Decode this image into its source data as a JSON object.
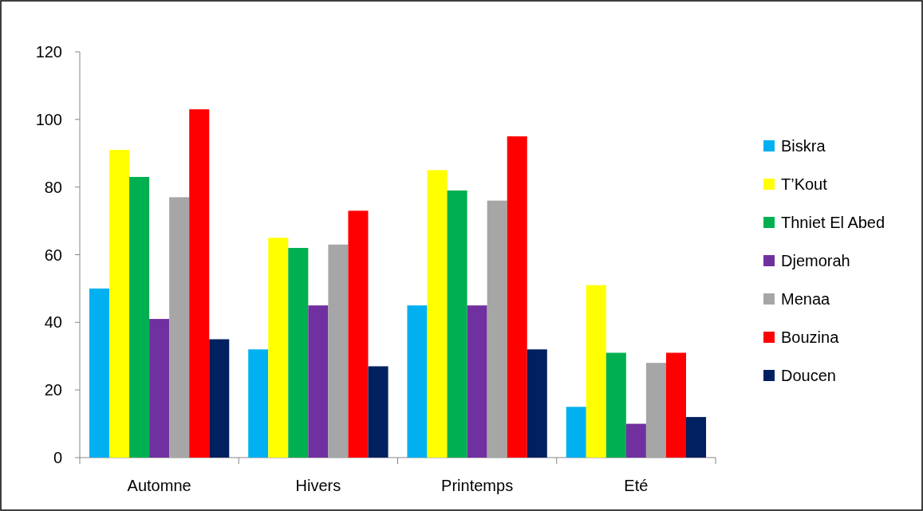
{
  "chart_data": {
    "type": "bar",
    "categories": [
      "Automne",
      "Hivers",
      "Printemps",
      "Eté"
    ],
    "series": [
      {
        "name": "Biskra",
        "color": "#00b0f0",
        "values": [
          50,
          32,
          45,
          15
        ]
      },
      {
        "name": "T’Kout",
        "color": "#ffff00",
        "values": [
          91,
          65,
          85,
          51
        ]
      },
      {
        "name": "Thniet El Abed",
        "color": "#00b050",
        "values": [
          83,
          62,
          79,
          31
        ]
      },
      {
        "name": "Djemorah",
        "color": "#7030a0",
        "values": [
          41,
          45,
          45,
          10
        ]
      },
      {
        "name": "Menaa",
        "color": "#a6a6a6",
        "values": [
          77,
          63,
          76,
          28
        ]
      },
      {
        "name": "Bouzina",
        "color": "#ff0000",
        "values": [
          103,
          73,
          95,
          31
        ]
      },
      {
        "name": "Doucen",
        "color": "#002060",
        "values": [
          35,
          27,
          32,
          12
        ]
      }
    ],
    "ylim": [
      0,
      120
    ],
    "yticks": [
      0,
      20,
      40,
      60,
      80,
      100,
      120
    ],
    "grid": false,
    "legend": "right"
  }
}
